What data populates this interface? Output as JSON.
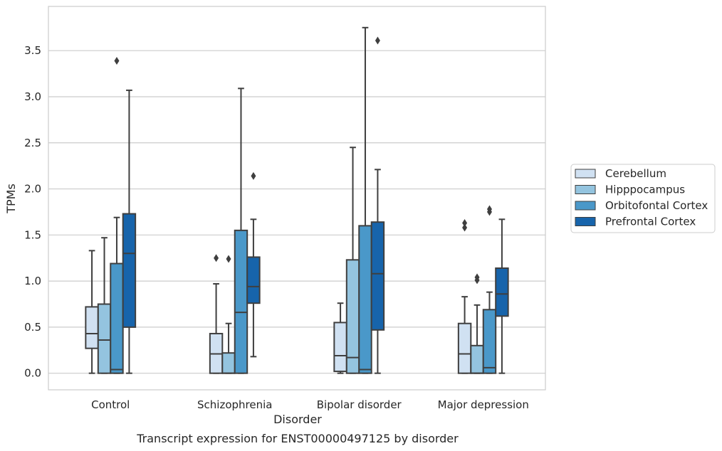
{
  "chart_data": {
    "type": "box",
    "title": "",
    "caption": "Transcript expression for ENST00000497125 by disorder",
    "xlabel": "Disorder",
    "ylabel": "TPMs",
    "ylim": [
      -0.18,
      3.98
    ],
    "yticks": [
      0.0,
      0.5,
      1.0,
      1.5,
      2.0,
      2.5,
      3.0,
      3.5
    ],
    "ytick_labels": [
      "0.0",
      "0.5",
      "1.0",
      "1.5",
      "2.0",
      "2.5",
      "3.0",
      "3.5"
    ],
    "grid": "horizontal",
    "legend_position": "right",
    "categories": [
      "Control",
      "Schizophrenia",
      "Bipolar disorder",
      "Major depression"
    ],
    "series": [
      {
        "name": "Cerebellum",
        "color": "#d0e1f2",
        "boxes": [
          {
            "whisker_low": 0.0,
            "q1": 0.27,
            "median": 0.43,
            "q3": 0.72,
            "whisker_high": 1.33,
            "outliers": []
          },
          {
            "whisker_low": 0.0,
            "q1": 0.0,
            "median": 0.21,
            "q3": 0.43,
            "whisker_high": 0.97,
            "outliers": [
              1.25
            ]
          },
          {
            "whisker_low": 0.0,
            "q1": 0.02,
            "median": 0.19,
            "q3": 0.55,
            "whisker_high": 0.76,
            "outliers": []
          },
          {
            "whisker_low": 0.0,
            "q1": 0.0,
            "median": 0.21,
            "q3": 0.54,
            "whisker_high": 0.83,
            "outliers": [
              1.58,
              1.63
            ]
          }
        ]
      },
      {
        "name": "Hipppocampus",
        "color": "#94c4df",
        "boxes": [
          {
            "whisker_low": 0.0,
            "q1": 0.0,
            "median": 0.36,
            "q3": 0.75,
            "whisker_high": 1.47,
            "outliers": []
          },
          {
            "whisker_low": 0.0,
            "q1": 0.0,
            "median": 0.0,
            "q3": 0.22,
            "whisker_high": 0.54,
            "outliers": [
              1.24
            ]
          },
          {
            "whisker_low": 0.0,
            "q1": 0.0,
            "median": 0.17,
            "q3": 1.23,
            "whisker_high": 2.45,
            "outliers": []
          },
          {
            "whisker_low": 0.0,
            "q1": 0.0,
            "median": 0.0,
            "q3": 0.3,
            "whisker_high": 0.74,
            "outliers": [
              1.01,
              1.04
            ]
          }
        ]
      },
      {
        "name": "Orbitofontal Cortex",
        "color": "#4a98c9",
        "boxes": [
          {
            "whisker_low": 0.0,
            "q1": 0.0,
            "median": 0.04,
            "q3": 1.19,
            "whisker_high": 1.69,
            "outliers": [
              3.39
            ]
          },
          {
            "whisker_low": 0.0,
            "q1": 0.0,
            "median": 0.66,
            "q3": 1.55,
            "whisker_high": 3.09,
            "outliers": []
          },
          {
            "whisker_low": 0.0,
            "q1": 0.0,
            "median": 0.04,
            "q3": 1.6,
            "whisker_high": 3.75,
            "outliers": []
          },
          {
            "whisker_low": 0.0,
            "q1": 0.0,
            "median": 0.06,
            "q3": 0.69,
            "whisker_high": 0.88,
            "outliers": [
              1.75,
              1.78
            ]
          }
        ]
      },
      {
        "name": "Prefrontal Cortex",
        "color": "#1764ab",
        "boxes": [
          {
            "whisker_low": 0.0,
            "q1": 0.5,
            "median": 1.3,
            "q3": 1.73,
            "whisker_high": 3.07,
            "outliers": []
          },
          {
            "whisker_low": 0.18,
            "q1": 0.76,
            "median": 0.94,
            "q3": 1.26,
            "whisker_high": 1.67,
            "outliers": [
              2.14
            ]
          },
          {
            "whisker_low": 0.0,
            "q1": 0.47,
            "median": 1.08,
            "q3": 1.64,
            "whisker_high": 2.21,
            "outliers": [
              3.61
            ]
          },
          {
            "whisker_low": 0.0,
            "q1": 0.62,
            "median": 0.86,
            "q3": 1.14,
            "whisker_high": 1.67,
            "outliers": []
          }
        ]
      }
    ]
  },
  "colors": {
    "box_edge": "#3f3f3f",
    "grid": "#cccccc",
    "frame": "#cccccc",
    "text": "#262626"
  }
}
